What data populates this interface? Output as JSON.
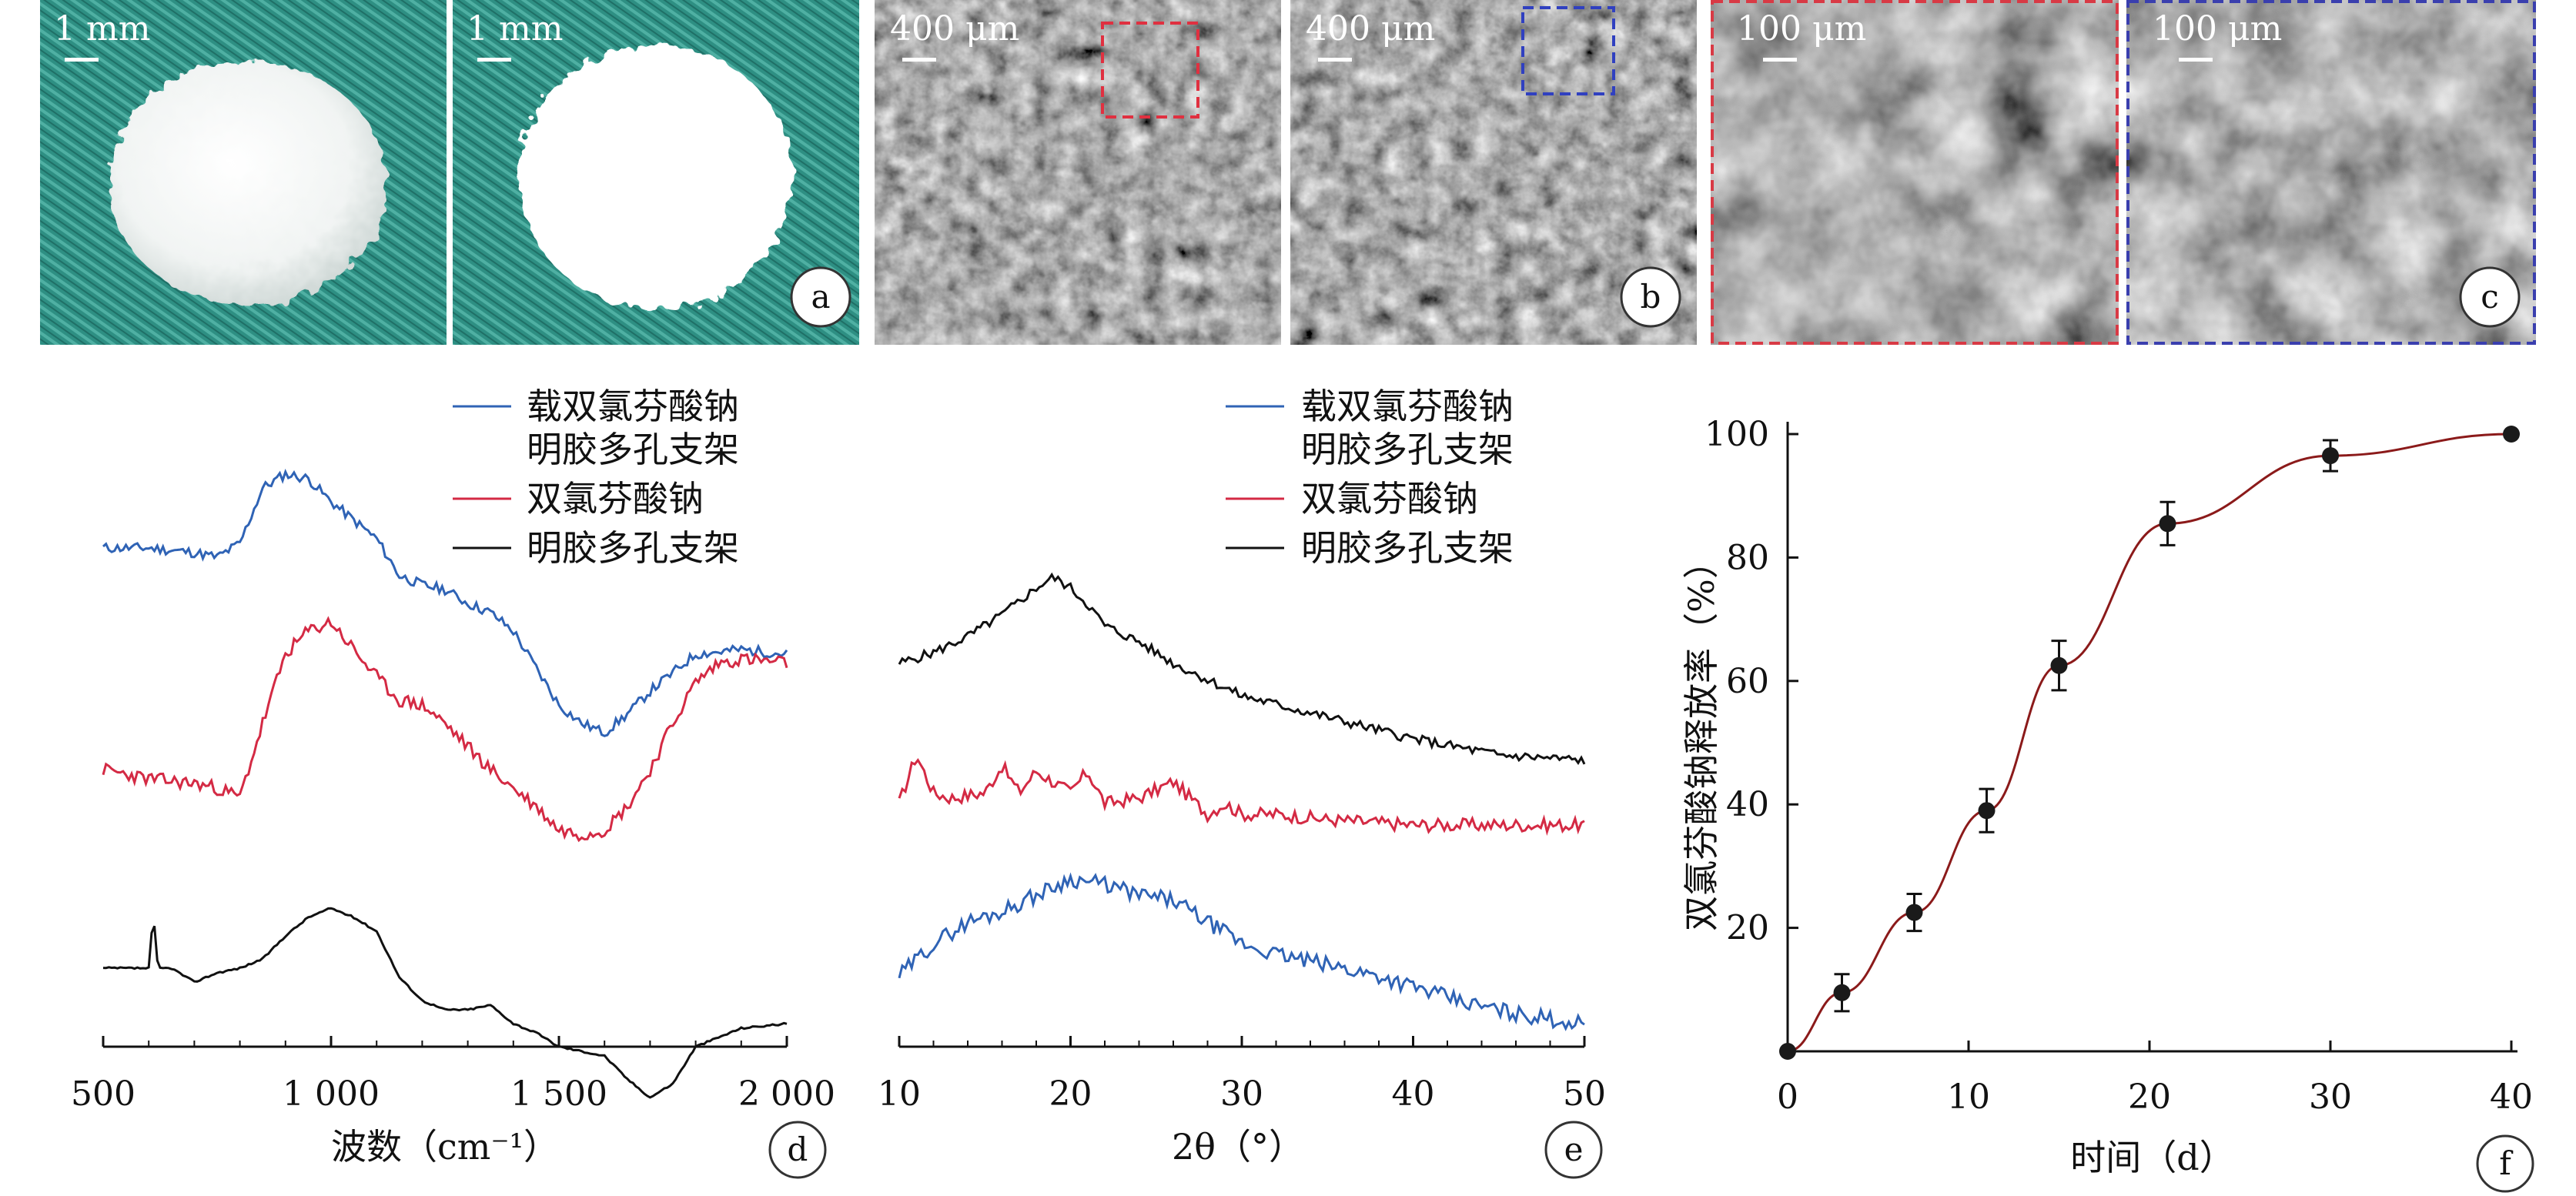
{
  "photos": {
    "panels": [
      {
        "scale": "1 mm",
        "type": "scaffold",
        "tint": "#f3f5f4"
      },
      {
        "scale": "1 mm",
        "type": "scaffold",
        "tint": "#ffffff"
      },
      {
        "scale": "400 μm",
        "type": "sem",
        "box": "#e03040"
      },
      {
        "scale": "400 μm",
        "type": "sem",
        "box": "#3040c0"
      },
      {
        "scale": "100 μm",
        "type": "sem-zoom",
        "frame": "#d83a45"
      },
      {
        "scale": "100 μm",
        "type": "sem-zoom",
        "frame": "#3a3fae"
      }
    ],
    "labels": [
      "a",
      "b",
      "c"
    ],
    "fabric_color": "#2e8f83"
  },
  "legend": {
    "loaded_line1": "载双氯芬酸钠",
    "loaded_line2": "明胶多孔支架",
    "dfs": "双氯芬酸钠",
    "gel": "明胶多孔支架"
  },
  "colors": {
    "loaded": "#2f63b5",
    "dfs": "#d42a44",
    "gel": "#111111",
    "release": "#8b1a1a"
  },
  "panel_labels": {
    "d": "d",
    "e": "e",
    "f": "f"
  },
  "chart_data": [
    {
      "type": "line",
      "panel": "d",
      "xlabel": "波数（cm⁻¹）",
      "x_ticks": [
        "500",
        "1 000",
        "1 500",
        "2 000"
      ],
      "xlim": [
        500,
        2000
      ],
      "series": [
        {
          "name": "载双氯芬酸钠明胶多孔支架",
          "x": [
            500,
            600,
            700,
            750,
            800,
            850,
            900,
            950,
            1000,
            1050,
            1100,
            1150,
            1200,
            1250,
            1300,
            1350,
            1400,
            1450,
            1500,
            1550,
            1600,
            1650,
            1700,
            1800,
            1900,
            2000
          ],
          "y": [
            0.78,
            0.78,
            0.77,
            0.76,
            0.79,
            0.91,
            0.94,
            0.93,
            0.88,
            0.84,
            0.8,
            0.72,
            0.7,
            0.69,
            0.66,
            0.64,
            0.6,
            0.52,
            0.44,
            0.4,
            0.38,
            0.42,
            0.47,
            0.55,
            0.56,
            0.55
          ]
        },
        {
          "name": "双氯芬酸钠",
          "x": [
            500,
            600,
            700,
            750,
            800,
            850,
            900,
            950,
            1000,
            1050,
            1100,
            1150,
            1200,
            1250,
            1300,
            1350,
            1400,
            1450,
            1500,
            1550,
            1600,
            1650,
            1700,
            1750,
            1800,
            1850,
            1900,
            2000
          ],
          "y": [
            0.3,
            0.28,
            0.27,
            0.26,
            0.24,
            0.4,
            0.55,
            0.6,
            0.62,
            0.56,
            0.5,
            0.45,
            0.44,
            0.4,
            0.35,
            0.3,
            0.26,
            0.22,
            0.17,
            0.16,
            0.17,
            0.22,
            0.3,
            0.4,
            0.49,
            0.53,
            0.54,
            0.53
          ]
        },
        {
          "name": "明胶多孔支架",
          "x": [
            500,
            580,
            600,
            610,
            620,
            650,
            700,
            750,
            800,
            850,
            900,
            950,
            1000,
            1050,
            1100,
            1150,
            1200,
            1250,
            1300,
            1350,
            1400,
            1450,
            1500,
            1550,
            1600,
            1650,
            1700,
            1750,
            1800,
            1900,
            2000
          ],
          "y": [
            -0.13,
            -0.13,
            -0.13,
            -0.01,
            -0.13,
            -0.13,
            -0.16,
            -0.14,
            -0.13,
            -0.11,
            -0.06,
            -0.02,
            0.0,
            -0.02,
            -0.05,
            -0.15,
            -0.2,
            -0.22,
            -0.22,
            -0.21,
            -0.25,
            -0.27,
            -0.3,
            -0.31,
            -0.32,
            -0.37,
            -0.41,
            -0.38,
            -0.3,
            -0.26,
            -0.25
          ]
        }
      ]
    },
    {
      "type": "line",
      "panel": "e",
      "xlabel": "2θ（°）",
      "x_ticks": [
        "10",
        "20",
        "30",
        "40",
        "50"
      ],
      "xlim": [
        10,
        50
      ],
      "series": [
        {
          "name": "明胶多孔支架",
          "x": [
            10,
            12,
            14,
            16,
            18,
            19,
            20,
            21,
            22,
            24,
            26,
            28,
            30,
            35,
            40,
            45,
            50
          ],
          "y": [
            0.64,
            0.66,
            0.69,
            0.73,
            0.78,
            0.8,
            0.78,
            0.75,
            0.71,
            0.68,
            0.64,
            0.61,
            0.58,
            0.54,
            0.5,
            0.47,
            0.46
          ]
        },
        {
          "name": "双氯芬酸钠",
          "x": [
            10,
            11,
            12,
            13,
            15,
            16,
            17,
            18,
            20,
            21,
            22,
            24,
            26,
            28,
            29,
            30,
            32,
            35,
            40,
            45,
            50
          ],
          "y": [
            0.38,
            0.47,
            0.4,
            0.39,
            0.4,
            0.45,
            0.4,
            0.44,
            0.4,
            0.44,
            0.38,
            0.39,
            0.42,
            0.36,
            0.38,
            0.36,
            0.36,
            0.35,
            0.34,
            0.34,
            0.34
          ]
        },
        {
          "name": "载双氯芬酸钠明胶多孔支架",
          "x": [
            10,
            12,
            14,
            16,
            18,
            20,
            22,
            24,
            26,
            28,
            30,
            32,
            35,
            38,
            40,
            43,
            46,
            50
          ],
          "y": [
            0.06,
            0.12,
            0.16,
            0.18,
            0.21,
            0.24,
            0.23,
            0.21,
            0.2,
            0.16,
            0.12,
            0.1,
            0.08,
            0.06,
            0.04,
            0.01,
            -0.01,
            -0.03
          ]
        }
      ]
    },
    {
      "type": "line",
      "panel": "f",
      "xlabel": "时间（d）",
      "ylabel": "双氯芬酸钠释放率（%）",
      "xlim": [
        0,
        40
      ],
      "ylim": [
        0,
        100
      ],
      "x_ticks": [
        "0",
        "10",
        "20",
        "30",
        "40"
      ],
      "y_ticks": [
        "20",
        "40",
        "60",
        "80",
        "100"
      ],
      "series": [
        {
          "name": "双氯芬酸钠释放率",
          "x": [
            0,
            3,
            7,
            11,
            15,
            21,
            30,
            40
          ],
          "y": [
            0,
            9.5,
            22.5,
            39,
            62.5,
            85.5,
            96.5,
            100
          ],
          "err": [
            0,
            3,
            3,
            3.5,
            4,
            3.5,
            2.5,
            0
          ]
        }
      ]
    }
  ]
}
